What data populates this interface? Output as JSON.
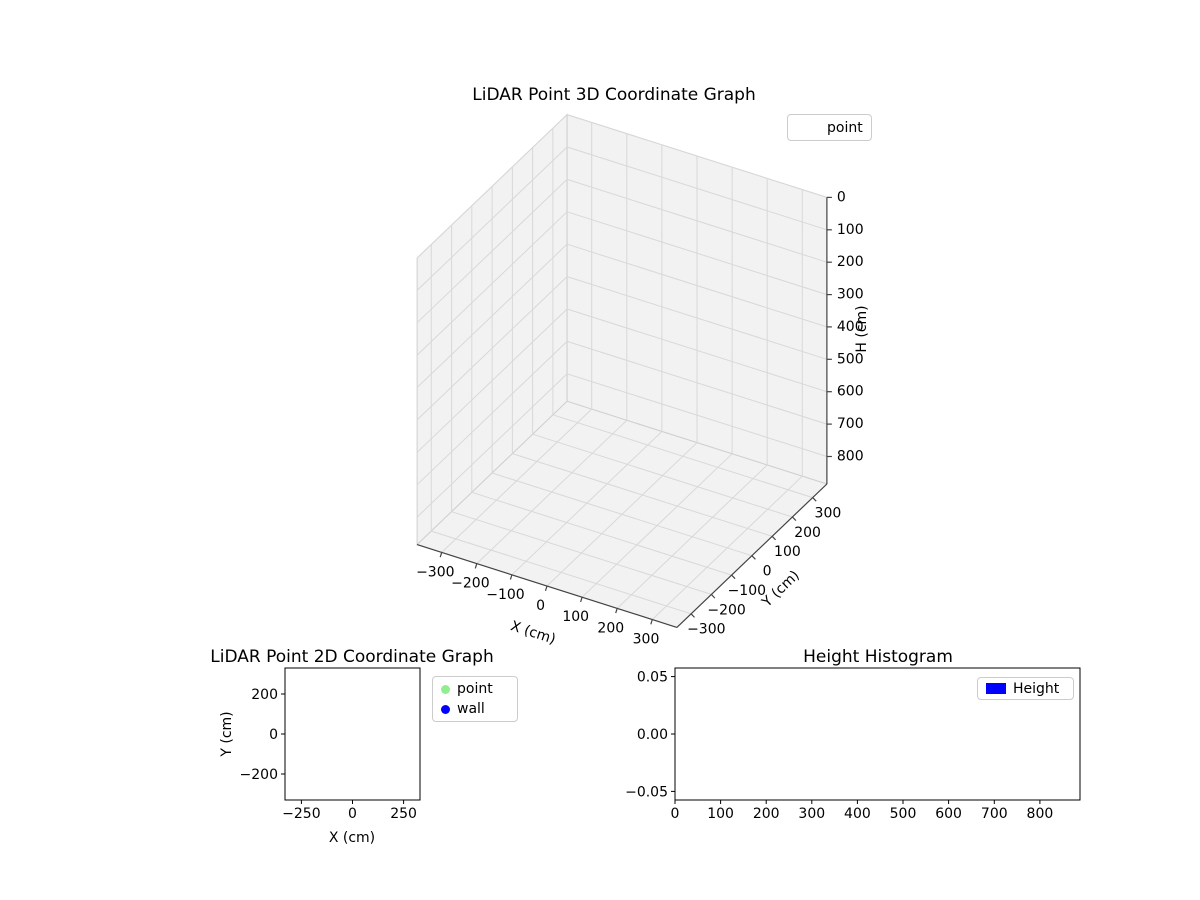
{
  "figure": {
    "background": "#ffffff"
  },
  "chart_data": [
    {
      "id": "plot3d",
      "type": "scatter3d",
      "title": "LiDAR Point 3D Coordinate Graph",
      "xlabel": "X (cm)",
      "ylabel": "Y (cm)",
      "zlabel": "H (cm)",
      "xlim": [
        -370,
        370
      ],
      "ylim": [
        -370,
        370
      ],
      "zlim": [
        0,
        885
      ],
      "zaxis_inverted": true,
      "grid": true,
      "view": {
        "elev": 30,
        "azim": -60
      },
      "xticks": [
        -300,
        -200,
        -100,
        0,
        100,
        200,
        300
      ],
      "xtick_labels": [
        "−300",
        "−200",
        "−100",
        "0",
        "100",
        "200",
        "300"
      ],
      "yticks": [
        -300,
        -200,
        -100,
        0,
        100,
        200,
        300
      ],
      "ytick_labels": [
        "−300",
        "−200",
        "−100",
        "0",
        "100",
        "200",
        "300"
      ],
      "zticks": [
        0,
        100,
        200,
        300,
        400,
        500,
        600,
        700,
        800
      ],
      "ztick_labels": [
        "0",
        "100",
        "200",
        "300",
        "400",
        "500",
        "600",
        "700",
        "800"
      ],
      "legend": [
        {
          "label": "point",
          "marker": "none"
        }
      ],
      "legend_position": "upper right",
      "points": []
    },
    {
      "id": "plot2d",
      "type": "scatter",
      "title": "LiDAR Point 2D Coordinate Graph",
      "xlabel": "X (cm)",
      "ylabel": "Y (cm)",
      "xlim": [
        -330,
        330
      ],
      "ylim": [
        -330,
        330
      ],
      "grid": false,
      "xticks": [
        -250,
        0,
        250
      ],
      "xtick_labels": [
        "−250",
        "0",
        "250"
      ],
      "yticks": [
        200,
        0,
        -200
      ],
      "ytick_labels": [
        "200",
        "0",
        "−200"
      ],
      "legend": [
        {
          "label": "point",
          "color": "#90ee90",
          "marker": "circle"
        },
        {
          "label": "wall",
          "color": "#0000ff",
          "marker": "circle"
        }
      ],
      "legend_position": "outside upper right",
      "points": []
    },
    {
      "id": "histogram",
      "type": "bar",
      "title": "Height Histogram",
      "xlabel": "",
      "ylabel": "",
      "xlim": [
        0,
        888
      ],
      "ylim": [
        -0.0575,
        0.0575
      ],
      "grid": false,
      "xticks": [
        0,
        100,
        200,
        300,
        400,
        500,
        600,
        700,
        800
      ],
      "xtick_labels": [
        "0",
        "100",
        "200",
        "300",
        "400",
        "500",
        "600",
        "700",
        "800"
      ],
      "yticks": [
        0.05,
        0,
        -0.05
      ],
      "ytick_labels": [
        "0.05",
        "0.00",
        "−0.05"
      ],
      "legend": [
        {
          "label": "Height",
          "color": "#0000ff",
          "marker": "rect"
        }
      ],
      "legend_position": "upper right",
      "values": []
    }
  ]
}
